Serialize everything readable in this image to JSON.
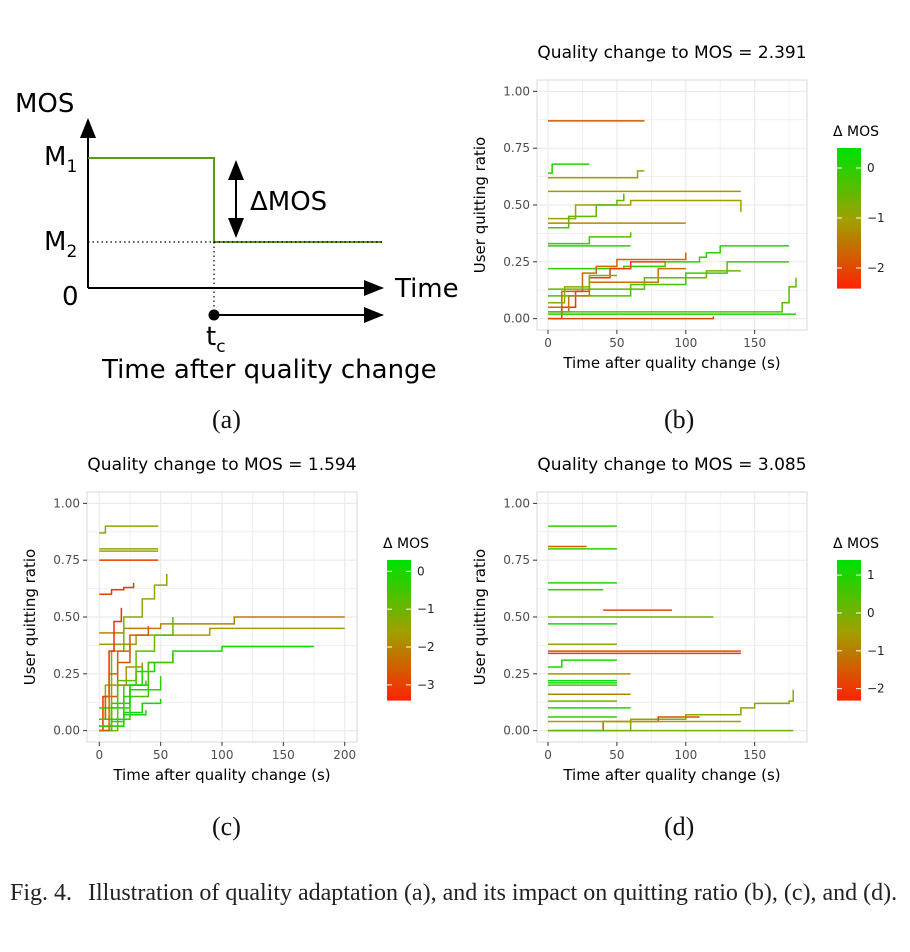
{
  "schematic": {
    "mos_label": "MOS",
    "m1_label": "M",
    "m1_sub": "1",
    "m2_label": "M",
    "m2_sub": "2",
    "zero_label": "0",
    "time_label": "Time",
    "delta_label": "ΔMOS",
    "tc_label": "t",
    "tc_sub": "c",
    "after_label": "Time after quality change",
    "line_color": "#5a9a1a"
  },
  "sublabels": {
    "a": "(a)",
    "b": "(b)",
    "c": "(c)",
    "d": "(d)"
  },
  "caption": {
    "fig": "Fig. 4.",
    "text": "Illustration of quality adaptation (a), and its impact on quitting ratio (b), (c), and (d)."
  },
  "colors": {
    "green": "#00e000",
    "mid": "#a0a000",
    "red": "#ff2000",
    "grid": "#ebebeb"
  },
  "chart_data": [
    {
      "id": "b",
      "type": "line",
      "title": "Quality change to MOS = 2.391",
      "xlabel": "Time after quality change (s)",
      "ylabel": "User quitting  ratio",
      "xticks": [
        0,
        50,
        100,
        150
      ],
      "xlim": [
        -8,
        188
      ],
      "yticks": [
        0.0,
        0.25,
        0.5,
        0.75,
        1.0
      ],
      "yticklabels": [
        "0.00",
        "0.25",
        "0.50",
        "0.75",
        "1.00"
      ],
      "ylim": [
        -0.05,
        1.05
      ],
      "legend": {
        "title": "Δ MOS",
        "ticks": [
          0,
          -1,
          -2
        ],
        "range": [
          -2.4,
          0.4
        ],
        "position": "right"
      },
      "grid": true,
      "series": [
        {
          "d": -1.8,
          "x": [
            0,
            28,
            70
          ],
          "y": [
            0.87,
            0.87,
            0.87
          ]
        },
        {
          "d": 0.1,
          "x": [
            0,
            3,
            30
          ],
          "y": [
            0.64,
            0.68,
            0.68
          ]
        },
        {
          "d": -0.9,
          "x": [
            0,
            60,
            65,
            70
          ],
          "y": [
            0.62,
            0.62,
            0.65,
            0.65
          ]
        },
        {
          "d": -1.1,
          "x": [
            0,
            28,
            140
          ],
          "y": [
            0.56,
            0.56,
            0.56
          ]
        },
        {
          "d": -1.0,
          "x": [
            0,
            20,
            60,
            110,
            140
          ],
          "y": [
            0.44,
            0.5,
            0.52,
            0.52,
            0.47
          ]
        },
        {
          "d": -0.4,
          "x": [
            0,
            15,
            35,
            50,
            55
          ],
          "y": [
            0.4,
            0.45,
            0.5,
            0.52,
            0.55
          ]
        },
        {
          "d": -1.3,
          "x": [
            0,
            50,
            100
          ],
          "y": [
            0.42,
            0.42,
            0.42
          ]
        },
        {
          "d": -0.2,
          "x": [
            0,
            30,
            60
          ],
          "y": [
            0.33,
            0.36,
            0.38
          ]
        },
        {
          "d": 0.0,
          "x": [
            0,
            50,
            60
          ],
          "y": [
            0.32,
            0.32,
            0.32
          ]
        },
        {
          "d": 0.0,
          "x": [
            0,
            40,
            55,
            85,
            110,
            115,
            125,
            175
          ],
          "y": [
            0.22,
            0.22,
            0.23,
            0.25,
            0.27,
            0.29,
            0.32,
            0.32
          ]
        },
        {
          "d": -0.2,
          "x": [
            0,
            60,
            100,
            130,
            175
          ],
          "y": [
            0.1,
            0.15,
            0.2,
            0.25,
            0.25
          ]
        },
        {
          "d": -1.6,
          "x": [
            0,
            10,
            25,
            35,
            50,
            100
          ],
          "y": [
            0.05,
            0.12,
            0.2,
            0.23,
            0.26,
            0.29
          ]
        },
        {
          "d": -2.1,
          "x": [
            0,
            10,
            20,
            30,
            45,
            60,
            85
          ],
          "y": [
            0.0,
            0.05,
            0.12,
            0.18,
            0.22,
            0.25,
            0.25
          ]
        },
        {
          "d": -1.5,
          "x": [
            0,
            15,
            30,
            80,
            100
          ],
          "y": [
            0.03,
            0.1,
            0.16,
            0.22,
            0.22
          ]
        },
        {
          "d": -2.0,
          "x": [
            0,
            50,
            120
          ],
          "y": [
            0.0,
            0.0,
            0.01
          ]
        },
        {
          "d": -0.3,
          "x": [
            0,
            60,
            120,
            160,
            170,
            175,
            180
          ],
          "y": [
            0.03,
            0.03,
            0.03,
            0.03,
            0.07,
            0.14,
            0.18
          ]
        },
        {
          "d": -0.5,
          "x": [
            0,
            70,
            115,
            140
          ],
          "y": [
            0.13,
            0.18,
            0.21,
            0.21
          ]
        },
        {
          "d": -0.7,
          "x": [
            0,
            12,
            30,
            50
          ],
          "y": [
            0.07,
            0.14,
            0.19,
            0.19
          ]
        },
        {
          "d": 0.2,
          "x": [
            0,
            170,
            180
          ],
          "y": [
            0.02,
            0.02,
            0.02
          ]
        }
      ]
    },
    {
      "id": "c",
      "type": "line",
      "title": "Quality change to MOS = 1.594",
      "xlabel": "Time after quality change (s)",
      "ylabel": "User quitting  ratio",
      "xticks": [
        0,
        50,
        100,
        150,
        200
      ],
      "xlim": [
        -10,
        210
      ],
      "yticks": [
        0.0,
        0.25,
        0.5,
        0.75,
        1.0
      ],
      "yticklabels": [
        "0.00",
        "0.25",
        "0.50",
        "0.75",
        "1.00"
      ],
      "ylim": [
        -0.05,
        1.05
      ],
      "legend": {
        "title": "Δ MOS",
        "ticks": [
          0,
          -1,
          -2,
          -3
        ],
        "range": [
          -3.4,
          0.3
        ],
        "position": "right"
      },
      "grid": true,
      "series": [
        {
          "d": -1.2,
          "x": [
            0,
            5,
            48
          ],
          "y": [
            0.87,
            0.9,
            0.9
          ]
        },
        {
          "d": -1.4,
          "x": [
            0,
            48
          ],
          "y": [
            0.8,
            0.8
          ]
        },
        {
          "d": -1.5,
          "x": [
            0,
            48
          ],
          "y": [
            0.79,
            0.79
          ]
        },
        {
          "d": -3.0,
          "x": [
            0,
            48
          ],
          "y": [
            0.75,
            0.75
          ]
        },
        {
          "d": -3.0,
          "x": [
            0,
            5,
            10,
            20,
            28
          ],
          "y": [
            0.6,
            0.6,
            0.62,
            0.63,
            0.65
          ]
        },
        {
          "d": -2.0,
          "x": [
            0,
            20,
            50,
            110,
            150,
            200
          ],
          "y": [
            0.43,
            0.45,
            0.47,
            0.5,
            0.5,
            0.5
          ]
        },
        {
          "d": -1.6,
          "x": [
            0,
            30,
            90,
            200
          ],
          "y": [
            0.38,
            0.42,
            0.45,
            0.45
          ]
        },
        {
          "d": -1.2,
          "x": [
            0,
            5,
            10,
            20,
            35,
            45,
            55
          ],
          "y": [
            0.05,
            0.2,
            0.35,
            0.5,
            0.58,
            0.64,
            0.69
          ]
        },
        {
          "d": -3.2,
          "x": [
            0,
            3,
            8,
            12,
            18
          ],
          "y": [
            0.0,
            0.15,
            0.35,
            0.48,
            0.54
          ]
        },
        {
          "d": -2.6,
          "x": [
            0,
            5,
            15,
            25,
            40
          ],
          "y": [
            0.05,
            0.15,
            0.3,
            0.42,
            0.46
          ]
        },
        {
          "d": 0.1,
          "x": [
            0,
            10,
            25,
            40,
            60,
            100,
            150,
            175
          ],
          "y": [
            0.0,
            0.1,
            0.2,
            0.3,
            0.35,
            0.37,
            0.37,
            0.37
          ]
        },
        {
          "d": -0.5,
          "x": [
            0,
            20,
            40,
            60
          ],
          "y": [
            0.02,
            0.15,
            0.3,
            0.34
          ]
        },
        {
          "d": 0.0,
          "x": [
            0,
            15,
            30,
            45
          ],
          "y": [
            0.1,
            0.2,
            0.26,
            0.3
          ]
        },
        {
          "d": -0.2,
          "x": [
            0,
            25,
            50
          ],
          "y": [
            0.05,
            0.18,
            0.24
          ]
        },
        {
          "d": 0.1,
          "x": [
            0,
            20,
            35,
            50
          ],
          "y": [
            0.02,
            0.08,
            0.12,
            0.14
          ]
        },
        {
          "d": 0.1,
          "x": [
            0,
            10,
            20,
            38
          ],
          "y": [
            0.0,
            0.04,
            0.07,
            0.09
          ]
        },
        {
          "d": -0.1,
          "x": [
            0,
            20,
            38
          ],
          "y": [
            0.05,
            0.2,
            0.22
          ]
        },
        {
          "d": 0.0,
          "x": [
            0,
            10,
            25,
            35
          ],
          "y": [
            0.02,
            0.12,
            0.2,
            0.29
          ]
        },
        {
          "d": -1.8,
          "x": [
            0,
            10,
            22,
            35
          ],
          "y": [
            0.0,
            0.2,
            0.28,
            0.3
          ]
        },
        {
          "d": -0.8,
          "x": [
            0,
            15,
            30,
            45,
            60
          ],
          "y": [
            0.0,
            0.22,
            0.35,
            0.42,
            0.5
          ]
        },
        {
          "d": -2.4,
          "x": [
            0,
            8,
            15,
            25
          ],
          "y": [
            0.0,
            0.25,
            0.35,
            0.38
          ]
        }
      ]
    },
    {
      "id": "d",
      "type": "line",
      "title": "Quality change to MOS = 3.085",
      "xlabel": "Time after quality change (s)",
      "ylabel": "User quitting  ratio",
      "xticks": [
        0,
        50,
        100,
        150
      ],
      "xlim": [
        -8,
        188
      ],
      "yticks": [
        0.0,
        0.25,
        0.5,
        0.75,
        1.0
      ],
      "yticklabels": [
        "0.00",
        "0.25",
        "0.50",
        "0.75",
        "1.00"
      ],
      "ylim": [
        -0.05,
        1.05
      ],
      "legend": {
        "title": "Δ MOS",
        "ticks": [
          1,
          0,
          -1,
          -2
        ],
        "range": [
          -2.3,
          1.4
        ],
        "position": "right"
      },
      "grid": true,
      "series": [
        {
          "d": 1.0,
          "x": [
            0,
            50
          ],
          "y": [
            0.9,
            0.9
          ]
        },
        {
          "d": -1.4,
          "x": [
            0,
            28
          ],
          "y": [
            0.81,
            0.81
          ]
        },
        {
          "d": 0.8,
          "x": [
            0,
            50
          ],
          "y": [
            0.8,
            0.8
          ]
        },
        {
          "d": 1.0,
          "x": [
            0,
            50
          ],
          "y": [
            0.65,
            0.65
          ]
        },
        {
          "d": 0.8,
          "x": [
            0,
            40
          ],
          "y": [
            0.62,
            0.62
          ]
        },
        {
          "d": -1.7,
          "x": [
            40,
            90
          ],
          "y": [
            0.53,
            0.53
          ]
        },
        {
          "d": 0.0,
          "x": [
            0,
            120
          ],
          "y": [
            0.5,
            0.5
          ]
        },
        {
          "d": 1.2,
          "x": [
            0,
            50
          ],
          "y": [
            0.47,
            0.47
          ]
        },
        {
          "d": -0.3,
          "x": [
            0,
            50
          ],
          "y": [
            0.38,
            0.38
          ]
        },
        {
          "d": -1.7,
          "x": [
            0,
            140
          ],
          "y": [
            0.35,
            0.35
          ]
        },
        {
          "d": -1.9,
          "x": [
            0,
            140
          ],
          "y": [
            0.34,
            0.34
          ]
        },
        {
          "d": 1.1,
          "x": [
            0,
            10,
            50
          ],
          "y": [
            0.28,
            0.31,
            0.31
          ]
        },
        {
          "d": -0.6,
          "x": [
            0,
            60
          ],
          "y": [
            0.25,
            0.25
          ]
        },
        {
          "d": 1.3,
          "x": [
            0,
            50
          ],
          "y": [
            0.22,
            0.22
          ]
        },
        {
          "d": 1.3,
          "x": [
            0,
            50
          ],
          "y": [
            0.21,
            0.21
          ]
        },
        {
          "d": 0.9,
          "x": [
            0,
            50
          ],
          "y": [
            0.2,
            0.2
          ]
        },
        {
          "d": -0.9,
          "x": [
            0,
            60
          ],
          "y": [
            0.16,
            0.16
          ]
        },
        {
          "d": 0.0,
          "x": [
            0,
            50
          ],
          "y": [
            0.13,
            0.13
          ]
        },
        {
          "d": 0.9,
          "x": [
            0,
            60
          ],
          "y": [
            0.1,
            0.1
          ]
        },
        {
          "d": -0.2,
          "x": [
            0,
            60,
            100,
            140,
            150,
            175,
            178
          ],
          "y": [
            0.0,
            0.05,
            0.07,
            0.1,
            0.12,
            0.13,
            0.18
          ]
        },
        {
          "d": -1.6,
          "x": [
            0,
            40,
            80,
            110
          ],
          "y": [
            0.0,
            0.04,
            0.06,
            0.06
          ]
        },
        {
          "d": -0.4,
          "x": [
            0,
            80,
            140
          ],
          "y": [
            0.04,
            0.04,
            0.04
          ]
        },
        {
          "d": 0.2,
          "x": [
            0,
            178
          ],
          "y": [
            0.0,
            0.0
          ]
        },
        {
          "d": 0.9,
          "x": [
            0,
            50
          ],
          "y": [
            0.06,
            0.06
          ]
        }
      ]
    }
  ]
}
